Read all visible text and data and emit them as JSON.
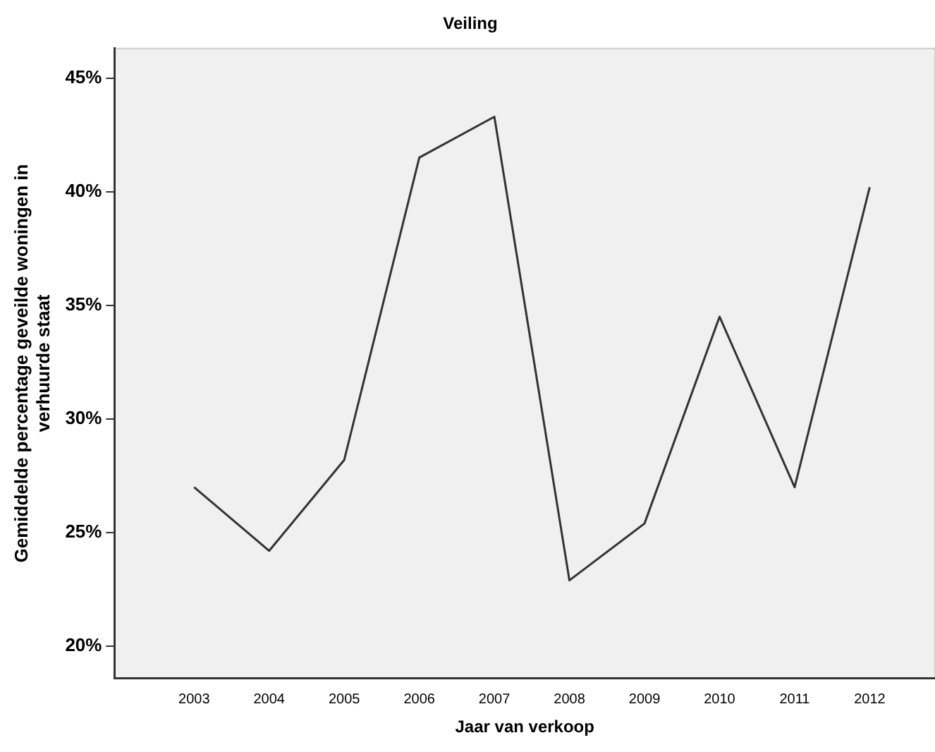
{
  "chart_data": {
    "type": "line",
    "title": "Veiling",
    "xlabel": "Jaar van verkoop",
    "ylabel": "Gemiddelde percentage geveilde woningen in verhuurde staat",
    "categories": [
      "2003",
      "2004",
      "2005",
      "2006",
      "2007",
      "2008",
      "2009",
      "2010",
      "2011",
      "2012"
    ],
    "series": [
      {
        "color": "#333333",
        "values": [
          27.0,
          24.2,
          28.2,
          41.5,
          43.3,
          22.9,
          25.4,
          34.5,
          27.0,
          40.2
        ]
      }
    ],
    "ylim": [
      18.6,
      46.3
    ],
    "yticks": [
      {
        "value": 20,
        "label": "20%"
      },
      {
        "value": 25,
        "label": "25%"
      },
      {
        "value": 30,
        "label": "30%"
      },
      {
        "value": 35,
        "label": "35%"
      },
      {
        "value": 40,
        "label": "40%"
      },
      {
        "value": 45,
        "label": "45%"
      }
    ],
    "grid": false,
    "legend": false,
    "marker": "none",
    "line_style": "solid"
  }
}
